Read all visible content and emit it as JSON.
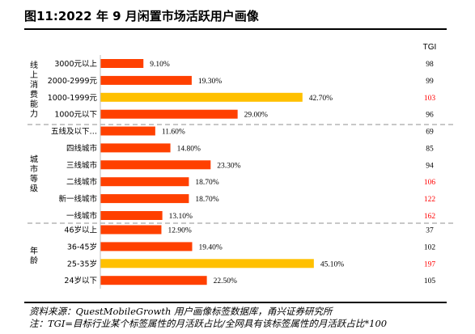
{
  "title": "图11:2022 年 9 月闲置市场活跃用户画像",
  "tgi_header": "TGI",
  "colors": {
    "bar": "#FF4000",
    "highlight": "#FFC000",
    "tgi_high": "#FF0000",
    "tgi_normal": "#000000",
    "divider": "#A6A6A6"
  },
  "chart_data": {
    "type": "bar",
    "orientation": "horizontal",
    "xlim": [
      0,
      60
    ],
    "groups": [
      {
        "label": "线上消费能力",
        "rows": [
          {
            "category": "3000元以上",
            "value": 9.1,
            "value_label": "9.10%",
            "tgi": 98,
            "highlight": false,
            "tgi_high": false
          },
          {
            "category": "2000-2999元",
            "value": 19.3,
            "value_label": "19.30%",
            "tgi": 99,
            "highlight": false,
            "tgi_high": false
          },
          {
            "category": "1000-1999元",
            "value": 42.7,
            "value_label": "42.70%",
            "tgi": 103,
            "highlight": true,
            "tgi_high": true
          },
          {
            "category": "1000元以下",
            "value": 29.0,
            "value_label": "29.00%",
            "tgi": 96,
            "highlight": false,
            "tgi_high": false
          }
        ]
      },
      {
        "label": "城市等级",
        "rows": [
          {
            "category": "五线及以下…",
            "value": 11.6,
            "value_label": "11.60%",
            "tgi": 69,
            "highlight": false,
            "tgi_high": false
          },
          {
            "category": "四线城市",
            "value": 14.8,
            "value_label": "14.80%",
            "tgi": 85,
            "highlight": false,
            "tgi_high": false
          },
          {
            "category": "三线城市",
            "value": 23.3,
            "value_label": "23.30%",
            "tgi": 94,
            "highlight": false,
            "tgi_high": false
          },
          {
            "category": "二线城市",
            "value": 18.7,
            "value_label": "18.70%",
            "tgi": 106,
            "highlight": false,
            "tgi_high": true
          },
          {
            "category": "新一线城市",
            "value": 18.7,
            "value_label": "18.70%",
            "tgi": 122,
            "highlight": false,
            "tgi_high": true
          },
          {
            "category": "一线城市",
            "value": 13.1,
            "value_label": "13.10%",
            "tgi": 162,
            "highlight": false,
            "tgi_high": true
          }
        ]
      },
      {
        "label": "年龄",
        "rows": [
          {
            "category": "46岁以上",
            "value": 12.9,
            "value_label": "12.90%",
            "tgi": 37,
            "highlight": false,
            "tgi_high": false
          },
          {
            "category": "36-45岁",
            "value": 19.4,
            "value_label": "19.40%",
            "tgi": 102,
            "highlight": false,
            "tgi_high": false
          },
          {
            "category": "25-35岁",
            "value": 45.1,
            "value_label": "45.10%",
            "tgi": 197,
            "highlight": true,
            "tgi_high": true
          },
          {
            "category": "24岁以下",
            "value": 22.5,
            "value_label": "22.50%",
            "tgi": 105,
            "highlight": false,
            "tgi_high": false
          }
        ]
      }
    ]
  },
  "footer": {
    "source": "资料来源：QuestMobileGrowth 用户画像标签数据库，甬兴证券研究所",
    "note": "注：TGI=目标行业某个标签属性的月活跃占比/全网具有该标签属性的月活跃占比*100"
  }
}
